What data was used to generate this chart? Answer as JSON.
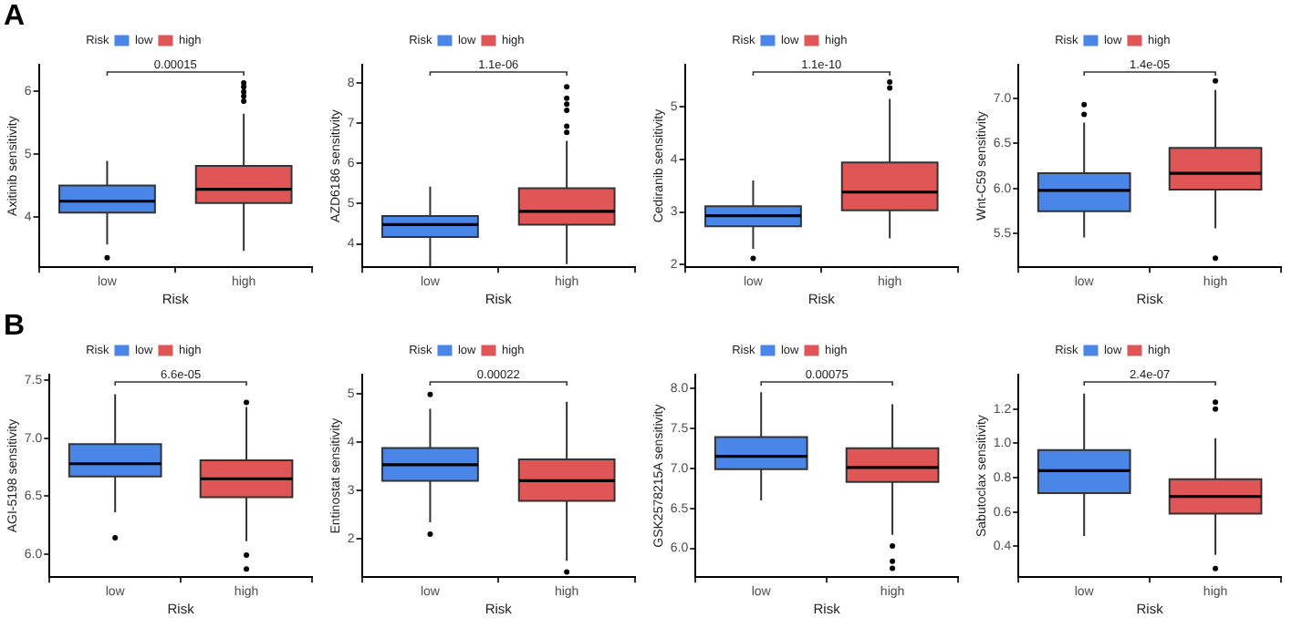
{
  "chart_data": [
    {
      "type": "box",
      "title": "A",
      "xlabel": "Risk",
      "ylabel": "Axitinib sensitivity",
      "legend_title": "Risk",
      "legend": "top",
      "categories": [
        "low",
        "high"
      ],
      "ylim": [
        3.2,
        6.42
      ],
      "yticks": [
        4,
        5,
        6
      ],
      "annotations": [
        "0.00015"
      ],
      "series": [
        {
          "name": "low",
          "color": "#4a86e8",
          "boxes": [
            {
              "low": 3.56,
              "q1": 4.07,
              "median": 4.25,
              "q3": 4.5,
              "high": 4.89,
              "outliers": [
                3.35
              ]
            },
            null
          ]
        },
        {
          "name": "high",
          "color": "#e05555",
          "boxes": [
            null,
            {
              "low": 3.46,
              "q1": 4.22,
              "median": 4.44,
              "q3": 4.81,
              "high": 5.64,
              "outliers": [
                6.13,
                6.07,
                5.99,
                5.92,
                5.84
              ]
            }
          ]
        }
      ]
    },
    {
      "type": "box",
      "xlabel": "Risk",
      "ylabel": "AZD6186 sensitivity",
      "legend_title": "Risk",
      "legend": "top",
      "categories": [
        "low",
        "high"
      ],
      "ylim": [
        3.42,
        8.45
      ],
      "yticks": [
        4,
        5,
        6,
        7,
        8
      ],
      "annotations": [
        "1.1e-06"
      ],
      "series": [
        {
          "name": "low",
          "color": "#4a86e8",
          "boxes": [
            {
              "low": 3.45,
              "q1": 4.17,
              "median": 4.48,
              "q3": 4.69,
              "high": 5.42
            },
            null
          ]
        },
        {
          "name": "high",
          "color": "#e05555",
          "boxes": [
            null,
            {
              "low": 3.5,
              "q1": 4.48,
              "median": 4.81,
              "q3": 5.38,
              "high": 6.56,
              "outliers": [
                7.9,
                7.62,
                7.47,
                7.32,
                6.92,
                6.77
              ]
            }
          ]
        }
      ]
    },
    {
      "type": "box",
      "xlabel": "Risk",
      "ylabel": "Cediranib sensitivity",
      "legend_title": "Risk",
      "legend": "top",
      "categories": [
        "low",
        "high"
      ],
      "ylim": [
        1.95,
        5.8
      ],
      "yticks": [
        2,
        3,
        4,
        5
      ],
      "annotations": [
        "1.1e-10"
      ],
      "series": [
        {
          "name": "low",
          "color": "#4a86e8",
          "boxes": [
            {
              "low": 2.3,
              "q1": 2.73,
              "median": 2.93,
              "q3": 3.11,
              "high": 3.6,
              "outliers": [
                2.12
              ]
            },
            null
          ]
        },
        {
          "name": "high",
          "color": "#e05555",
          "boxes": [
            null,
            {
              "low": 2.5,
              "q1": 3.03,
              "median": 3.38,
              "q3": 3.94,
              "high": 5.15,
              "outliers": [
                5.47,
                5.36
              ]
            }
          ]
        }
      ]
    },
    {
      "type": "box",
      "xlabel": "Risk",
      "ylabel": "Wnt-C59 sensitivity",
      "legend_title": "Risk",
      "legend": "top",
      "categories": [
        "low",
        "high"
      ],
      "ylim": [
        5.13,
        7.37
      ],
      "yticks": [
        5.5,
        {
          "value": 6,
          "label": "6.0"
        },
        6.5,
        {
          "value": 7,
          "label": "7.0"
        }
      ],
      "annotations": [
        "1.4e-05"
      ],
      "series": [
        {
          "name": "low",
          "color": "#4a86e8",
          "boxes": [
            {
              "low": 5.46,
              "q1": 5.75,
              "median": 5.98,
              "q3": 6.17,
              "high": 6.73,
              "outliers": [
                6.93,
                6.82
              ]
            },
            null
          ]
        },
        {
          "name": "high",
          "color": "#e05555",
          "boxes": [
            null,
            {
              "low": 5.56,
              "q1": 5.99,
              "median": 6.17,
              "q3": 6.45,
              "high": 7.09,
              "outliers": [
                7.19,
                5.23
              ]
            }
          ]
        }
      ]
    },
    {
      "type": "box",
      "title": "B",
      "xlabel": "Risk",
      "ylabel": "AGI-5198 sensitivity",
      "legend_title": "Risk",
      "legend": "top",
      "categories": [
        "low",
        "high"
      ],
      "ylim": [
        5.8,
        7.55
      ],
      "yticks": [
        {
          "value": 6,
          "label": "6.0"
        },
        6.5,
        {
          "value": 7,
          "label": "7.0"
        },
        7.5
      ],
      "annotations": [
        "6.6e-05"
      ],
      "series": [
        {
          "name": "low",
          "color": "#4a86e8",
          "boxes": [
            {
              "low": 6.36,
              "q1": 6.67,
              "median": 6.78,
              "q3": 6.95,
              "high": 7.38,
              "outliers": [
                6.14
              ]
            },
            null
          ]
        },
        {
          "name": "high",
          "color": "#e05555",
          "boxes": [
            null,
            {
              "low": 6.11,
              "q1": 6.49,
              "median": 6.65,
              "q3": 6.81,
              "high": 7.27,
              "outliers": [
                7.31,
                5.99,
                5.87
              ]
            }
          ]
        }
      ]
    },
    {
      "type": "box",
      "xlabel": "Risk",
      "ylabel": "Entinostat sensitivity",
      "legend_title": "Risk",
      "legend": "top",
      "categories": [
        "low",
        "high"
      ],
      "ylim": [
        1.2,
        5.4
      ],
      "yticks": [
        2,
        3,
        4,
        5
      ],
      "annotations": [
        "0.00022"
      ],
      "series": [
        {
          "name": "low",
          "color": "#4a86e8",
          "boxes": [
            {
              "low": 2.34,
              "q1": 3.2,
              "median": 3.53,
              "q3": 3.88,
              "high": 4.69,
              "outliers": [
                4.99,
                2.09
              ]
            },
            null
          ]
        },
        {
          "name": "high",
          "color": "#e05555",
          "boxes": [
            null,
            {
              "low": 1.54,
              "q1": 2.78,
              "median": 3.2,
              "q3": 3.64,
              "high": 4.84,
              "outliers": [
                1.31
              ]
            }
          ]
        }
      ]
    },
    {
      "type": "box",
      "xlabel": "Risk",
      "ylabel": "GSK2578215A sensitivity",
      "legend_title": "Risk",
      "legend": "top",
      "categories": [
        "low",
        "high"
      ],
      "ylim": [
        5.64,
        8.17
      ],
      "yticks": [
        {
          "value": 6,
          "label": "6.0"
        },
        6.5,
        {
          "value": 7,
          "label": "7.0"
        },
        7.5,
        {
          "value": 8,
          "label": "8.0"
        }
      ],
      "annotations": [
        "0.00075"
      ],
      "series": [
        {
          "name": "low",
          "color": "#4a86e8",
          "boxes": [
            {
              "low": 6.6,
              "q1": 6.99,
              "median": 7.15,
              "q3": 7.39,
              "high": 7.95
            },
            null
          ]
        },
        {
          "name": "high",
          "color": "#e05555",
          "boxes": [
            null,
            {
              "low": 6.17,
              "q1": 6.83,
              "median": 7.01,
              "q3": 7.25,
              "high": 7.8,
              "outliers": [
                6.03,
                5.84,
                5.75
              ]
            }
          ]
        }
      ]
    },
    {
      "type": "box",
      "xlabel": "Risk",
      "ylabel": "Sabutoclax sensitivity",
      "legend_title": "Risk",
      "legend": "top",
      "categories": [
        "low",
        "high"
      ],
      "ylim": [
        0.22,
        1.4
      ],
      "yticks": [
        0.4,
        0.6,
        0.8,
        {
          "value": 1,
          "label": "1.0"
        },
        1.2
      ],
      "annotations": [
        "2.4e-07"
      ],
      "series": [
        {
          "name": "low",
          "color": "#4a86e8",
          "boxes": [
            {
              "low": 0.46,
              "q1": 0.71,
              "median": 0.84,
              "q3": 0.96,
              "high": 1.29
            },
            null
          ]
        },
        {
          "name": "high",
          "color": "#e05555",
          "boxes": [
            null,
            {
              "low": 0.35,
              "q1": 0.59,
              "median": 0.69,
              "q3": 0.79,
              "high": 1.03,
              "outliers": [
                1.24,
                1.2,
                0.27
              ]
            }
          ]
        }
      ]
    }
  ]
}
